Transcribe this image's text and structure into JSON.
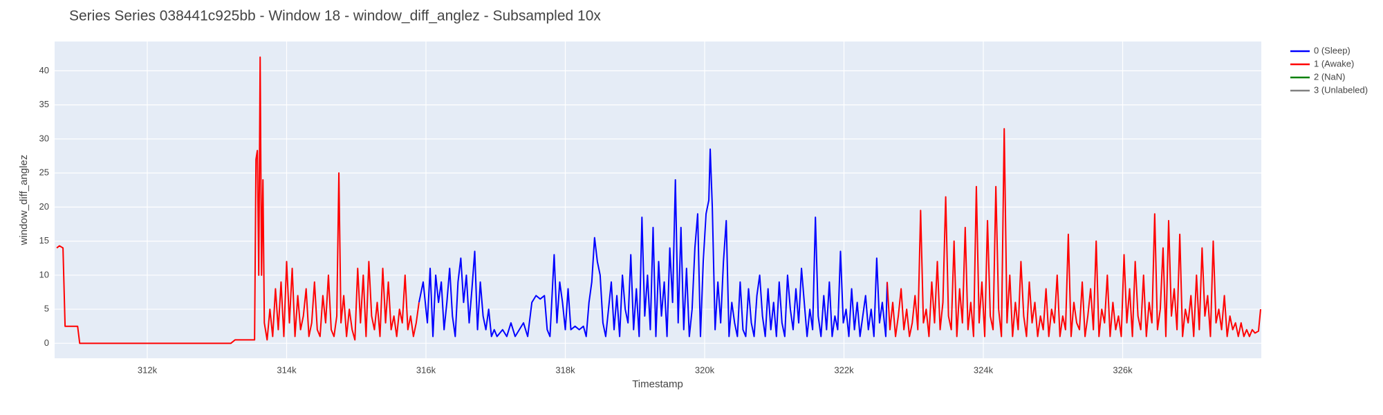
{
  "chart_data": {
    "type": "line",
    "title": "Series Series 038441c925bb - Window 18 - window_diff_anglez - Subsampled 10x",
    "x_label": "Timestamp",
    "y_label": "window_diff_anglez",
    "xlim": [
      310670,
      327990
    ],
    "ylim": [
      -2.2,
      44.3
    ],
    "xticks": [
      {
        "value": 312000,
        "label": "312k"
      },
      {
        "value": 314000,
        "label": "314k"
      },
      {
        "value": 316000,
        "label": "316k"
      },
      {
        "value": 318000,
        "label": "318k"
      },
      {
        "value": 320000,
        "label": "320k"
      },
      {
        "value": 322000,
        "label": "322k"
      },
      {
        "value": 324000,
        "label": "324k"
      },
      {
        "value": 326000,
        "label": "326k"
      }
    ],
    "yticks": [
      0,
      5,
      10,
      15,
      20,
      25,
      30,
      35,
      40
    ],
    "grid": true,
    "legend_position": "right",
    "series": [
      {
        "name": "0 (Sleep)",
        "color": "#0000ff",
        "x": [
          315900,
          315960,
          316020,
          316060,
          316100,
          316140,
          316180,
          316220,
          316260,
          316300,
          316340,
          316380,
          316420,
          316460,
          316500,
          316540,
          316580,
          316620,
          316660,
          316700,
          316740,
          316780,
          316820,
          316860,
          316900,
          316940,
          316980,
          317020,
          317100,
          317160,
          317220,
          317280,
          317340,
          317400,
          317460,
          317520,
          317580,
          317640,
          317700,
          317740,
          317780,
          317840,
          317880,
          317920,
          317960,
          318000,
          318040,
          318080,
          318140,
          318200,
          318260,
          318300,
          318340,
          318380,
          318420,
          318460,
          318500,
          318540,
          318580,
          318620,
          318660,
          318700,
          318740,
          318780,
          318820,
          318860,
          318900,
          318940,
          318980,
          319020,
          319060,
          319100,
          319140,
          319180,
          319220,
          319260,
          319300,
          319340,
          319380,
          319420,
          319460,
          319500,
          319540,
          319580,
          319620,
          319660,
          319700,
          319740,
          319780,
          319820,
          319860,
          319900,
          319940,
          319980,
          320020,
          320060,
          320080,
          320110,
          320150,
          320190,
          320230,
          320270,
          320310,
          320350,
          320390,
          320430,
          320470,
          320510,
          320550,
          320590,
          320630,
          320670,
          320710,
          320750,
          320790,
          320830,
          320870,
          320910,
          320950,
          320990,
          321030,
          321070,
          321110,
          321150,
          321190,
          321230,
          321270,
          321310,
          321350,
          321390,
          321430,
          321470,
          321510,
          321550,
          321590,
          321630,
          321670,
          321710,
          321750,
          321790,
          321830,
          321870,
          321910,
          321950,
          321990,
          322030,
          322070,
          322110,
          322150,
          322190,
          322230,
          322270,
          322310,
          322350,
          322390,
          322430,
          322470,
          322510,
          322550,
          322600,
          322620
        ],
        "values": [
          6,
          9,
          3,
          11,
          1,
          10,
          6,
          9,
          2,
          6,
          11,
          4,
          1,
          9,
          12.5,
          6,
          10,
          3,
          8,
          13.5,
          2,
          9,
          4,
          2,
          5,
          1,
          2,
          1,
          2,
          1,
          3,
          1,
          2,
          3,
          1,
          6,
          7,
          6.5,
          7,
          2,
          1,
          13,
          3,
          9,
          6,
          2,
          8,
          2,
          2.5,
          2,
          2.5,
          1,
          6,
          9,
          15.5,
          12,
          10,
          3,
          1,
          5,
          9,
          2,
          7,
          1,
          10,
          5,
          3,
          13,
          2,
          8,
          1,
          18.5,
          4,
          10,
          2,
          17,
          1,
          12,
          4,
          9,
          1,
          14,
          6,
          24,
          3,
          17,
          2,
          11,
          1,
          5,
          14,
          19,
          1,
          12,
          19,
          21,
          28.5,
          20,
          2,
          9,
          3,
          12,
          18,
          1,
          6,
          3,
          1,
          9,
          2,
          1,
          8,
          3,
          1,
          7,
          10,
          4,
          1,
          8,
          2,
          6,
          1,
          9,
          3,
          1,
          10,
          5,
          2,
          8,
          3,
          11,
          6,
          1,
          5,
          2,
          18.5,
          4,
          1,
          7,
          2,
          9,
          1,
          4,
          2,
          13.5,
          3,
          5,
          1,
          8,
          2,
          6,
          1,
          4,
          7,
          2,
          5,
          1,
          12.5,
          3,
          6,
          1,
          9
        ]
      },
      {
        "name": "1 (Awake)",
        "color": "#ff0000",
        "x": [
          310700,
          310740,
          310790,
          310820,
          311000,
          311030,
          313200,
          313260,
          313540,
          313560,
          313580,
          313600,
          313620,
          313640,
          313660,
          313680,
          313720,
          313760,
          313800,
          313840,
          313880,
          313920,
          313960,
          314000,
          314040,
          314080,
          314120,
          314160,
          314200,
          314240,
          314280,
          314320,
          314360,
          314400,
          314440,
          314480,
          314520,
          314560,
          314600,
          314640,
          314680,
          314720,
          314750,
          314780,
          314820,
          314860,
          314900,
          314940,
          314980,
          315020,
          315060,
          315100,
          315140,
          315180,
          315220,
          315260,
          315300,
          315340,
          315380,
          315420,
          315460,
          315500,
          315540,
          315580,
          315620,
          315660,
          315700,
          315740,
          315780,
          315820,
          315860,
          315900,
          315950,
          322620,
          322660,
          322700,
          322740,
          322780,
          322820,
          322860,
          322900,
          322940,
          322980,
          323020,
          323060,
          323100,
          323140,
          323180,
          323220,
          323260,
          323300,
          323340,
          323380,
          323420,
          323460,
          323500,
          323540,
          323580,
          323620,
          323660,
          323700,
          323740,
          323780,
          323820,
          323860,
          323900,
          323940,
          323980,
          324020,
          324060,
          324100,
          324140,
          324180,
          324220,
          324260,
          324300,
          324340,
          324380,
          324420,
          324460,
          324500,
          324540,
          324580,
          324620,
          324660,
          324700,
          324740,
          324780,
          324820,
          324860,
          324900,
          324940,
          324980,
          325020,
          325060,
          325100,
          325140,
          325180,
          325220,
          325260,
          325300,
          325340,
          325380,
          325420,
          325460,
          325500,
          325540,
          325580,
          325620,
          325660,
          325700,
          325740,
          325780,
          325820,
          325860,
          325900,
          325940,
          325980,
          326020,
          326060,
          326100,
          326140,
          326180,
          326220,
          326260,
          326300,
          326340,
          326380,
          326420,
          326460,
          326500,
          326540,
          326580,
          326620,
          326660,
          326700,
          326740,
          326780,
          326820,
          326860,
          326900,
          326940,
          326980,
          327020,
          327060,
          327100,
          327140,
          327180,
          327220,
          327260,
          327300,
          327340,
          327380,
          327420,
          327460,
          327500,
          327540,
          327580,
          327620,
          327660,
          327700,
          327740,
          327780,
          327820,
          327860,
          327900,
          327950,
          327980
        ],
        "values": [
          14,
          14.3,
          14,
          2.5,
          2.5,
          0,
          0,
          0.5,
          0.5,
          27,
          28.3,
          10,
          42,
          10,
          24,
          3,
          0.5,
          5,
          1,
          8,
          2,
          9,
          1,
          12,
          3,
          11,
          1,
          7,
          2,
          4,
          8,
          1,
          3,
          9,
          2,
          1,
          7,
          3,
          10,
          2,
          1,
          4,
          25,
          3,
          7,
          1,
          5,
          2,
          0.5,
          11,
          3,
          10,
          1,
          12,
          4,
          2,
          6,
          1,
          11,
          3,
          9,
          2,
          4,
          1,
          5,
          3,
          10,
          2,
          4,
          1,
          3,
          6,
          null,
          9,
          2,
          6,
          1,
          4,
          8,
          2,
          5,
          1,
          3,
          7,
          2,
          19.5,
          3,
          5,
          1,
          9,
          3,
          12,
          2,
          6,
          21.5,
          4,
          2,
          15,
          1,
          8,
          3,
          17,
          2,
          6,
          1,
          23,
          3,
          9,
          1,
          18,
          4,
          2,
          23,
          5,
          1,
          31.5,
          3,
          10,
          1,
          6,
          2,
          12,
          4,
          1,
          9,
          3,
          6,
          1,
          4,
          2,
          8,
          1,
          5,
          3,
          10,
          1,
          4,
          2,
          16,
          1,
          6,
          3,
          2,
          9,
          1,
          4,
          8,
          2,
          15,
          1,
          5,
          3,
          10,
          1,
          6,
          2,
          4,
          1,
          13,
          3,
          8,
          1,
          12,
          4,
          2,
          10,
          1,
          6,
          3,
          19,
          2,
          5,
          14,
          1,
          18,
          4,
          8,
          2,
          16,
          1,
          5,
          3,
          7,
          1,
          10,
          2,
          14,
          4,
          7,
          1,
          15,
          3,
          5,
          2,
          7,
          1,
          4,
          2,
          3,
          1,
          3,
          1,
          2,
          1,
          2,
          1.5,
          1.8,
          5
        ]
      },
      {
        "name": "2 (NaN)",
        "color": "#008000",
        "x": [],
        "values": []
      },
      {
        "name": "3 (Unlabeled)",
        "color": "#808080",
        "x": [],
        "values": []
      }
    ]
  }
}
